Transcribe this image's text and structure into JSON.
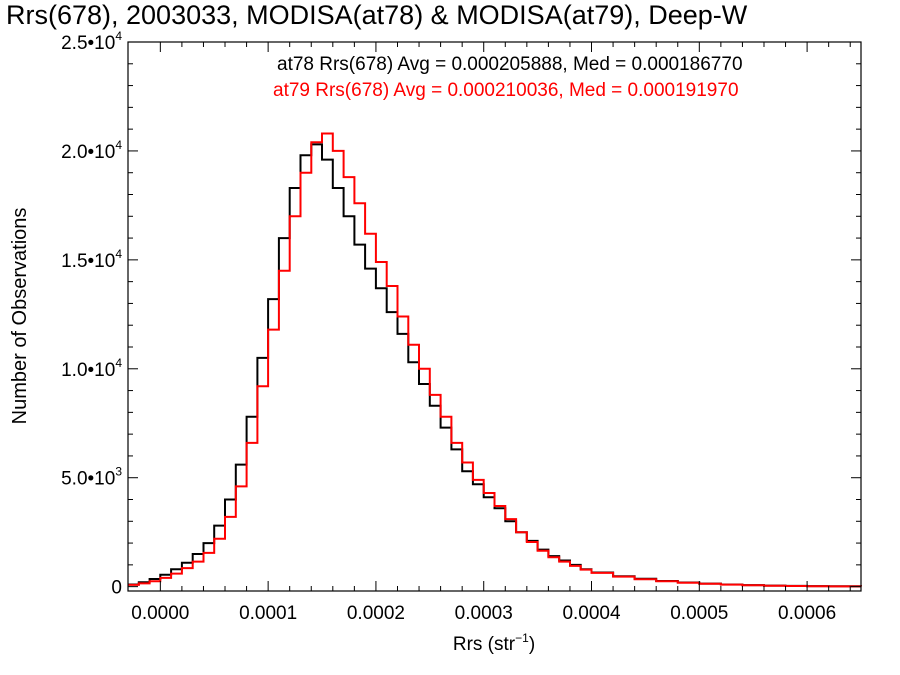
{
  "chart_data": {
    "type": "line",
    "title": "Rrs(678), 2003033, MODISA(at78) & MODISA(at79), Deep-W",
    "xlabel": "Rrs (str",
    "xlabel_sup": "−1",
    "xlabel_close": ")",
    "ylabel": "Number of Observations",
    "xlim": [
      -3e-05,
      0.00065
    ],
    "ylim": [
      -200,
      25000
    ],
    "grid": false,
    "x_ticks": [
      {
        "value": 0.0,
        "label": "0.0000"
      },
      {
        "value": 0.0001,
        "label": "0.0001"
      },
      {
        "value": 0.0002,
        "label": "0.0002"
      },
      {
        "value": 0.0003,
        "label": "0.0003"
      },
      {
        "value": 0.0004,
        "label": "0.0004"
      },
      {
        "value": 0.0005,
        "label": "0.0005"
      },
      {
        "value": 0.0006,
        "label": "0.0006"
      }
    ],
    "y_ticks": [
      {
        "value": 0,
        "label": "0",
        "exp": ""
      },
      {
        "value": 5000,
        "label": "5.0•10",
        "exp": "3"
      },
      {
        "value": 10000,
        "label": "1.0•10",
        "exp": "4"
      },
      {
        "value": 15000,
        "label": "1.5•10",
        "exp": "4"
      },
      {
        "value": 20000,
        "label": "2.0•10",
        "exp": "4"
      },
      {
        "value": 25000,
        "label": "2.5•10",
        "exp": "4"
      }
    ],
    "annotations": [
      {
        "text": "at78 Rrs(678) Avg = 0.000205888, Med = 0.000186770",
        "color": "#000000"
      },
      {
        "text": "at79 Rrs(678) Avg = 0.000210036, Med = 0.000191970",
        "color": "#ff0000"
      }
    ],
    "series": [
      {
        "name": "at78",
        "color": "#000000",
        "step": true,
        "x": [
          -3e-05,
          -2e-05,
          -1e-05,
          0.0,
          1e-05,
          2e-05,
          3e-05,
          4e-05,
          5e-05,
          6e-05,
          7e-05,
          8e-05,
          9e-05,
          0.0001,
          0.00011,
          0.00012,
          0.00013,
          0.00014,
          0.00015,
          0.00016,
          0.00017,
          0.00018,
          0.00019,
          0.0002,
          0.00021,
          0.00022,
          0.00023,
          0.00024,
          0.00025,
          0.00026,
          0.00027,
          0.00028,
          0.00029,
          0.0003,
          0.00031,
          0.00032,
          0.00033,
          0.00034,
          0.00035,
          0.00036,
          0.00037,
          0.00038,
          0.00039,
          0.0004,
          0.00042,
          0.00044,
          0.00046,
          0.00048,
          0.0005,
          0.00052,
          0.00054,
          0.00056,
          0.00058,
          0.0006,
          0.00062,
          0.00065
        ],
        "y": [
          100,
          200,
          350,
          550,
          800,
          1100,
          1500,
          2000,
          2800,
          4000,
          5600,
          7800,
          10500,
          13200,
          16000,
          18300,
          19800,
          20300,
          19600,
          18300,
          17000,
          15700,
          14600,
          13700,
          12600,
          11600,
          10300,
          9300,
          8300,
          7300,
          6300,
          5300,
          4700,
          4100,
          3600,
          3000,
          2500,
          2100,
          1700,
          1400,
          1200,
          1000,
          800,
          650,
          480,
          360,
          260,
          190,
          140,
          100,
          70,
          50,
          35,
          25,
          15,
          10
        ]
      },
      {
        "name": "at79",
        "color": "#ff0000",
        "step": true,
        "x": [
          -3e-05,
          -2e-05,
          -1e-05,
          0.0,
          1e-05,
          2e-05,
          3e-05,
          4e-05,
          5e-05,
          6e-05,
          7e-05,
          8e-05,
          9e-05,
          0.0001,
          0.00011,
          0.00012,
          0.00013,
          0.00014,
          0.00015,
          0.00016,
          0.00017,
          0.00018,
          0.00019,
          0.0002,
          0.00021,
          0.00022,
          0.00023,
          0.00024,
          0.00025,
          0.00026,
          0.00027,
          0.00028,
          0.00029,
          0.0003,
          0.00031,
          0.00032,
          0.00033,
          0.00034,
          0.00035,
          0.00036,
          0.00037,
          0.00038,
          0.00039,
          0.0004,
          0.00042,
          0.00044,
          0.00046,
          0.00048,
          0.0005,
          0.00052,
          0.00054,
          0.00056,
          0.00058,
          0.0006,
          0.00062,
          0.00065
        ],
        "y": [
          80,
          150,
          250,
          400,
          600,
          850,
          1150,
          1550,
          2200,
          3200,
          4600,
          6600,
          9200,
          11800,
          14500,
          17000,
          19000,
          20400,
          20800,
          20000,
          18800,
          17600,
          16200,
          14900,
          13800,
          12400,
          11100,
          10000,
          8800,
          7800,
          6600,
          5700,
          4900,
          4300,
          3700,
          3100,
          2500,
          2050,
          1650,
          1350,
          1150,
          950,
          780,
          630,
          460,
          340,
          250,
          180,
          130,
          95,
          65,
          45,
          30,
          20,
          12,
          8
        ]
      }
    ]
  }
}
